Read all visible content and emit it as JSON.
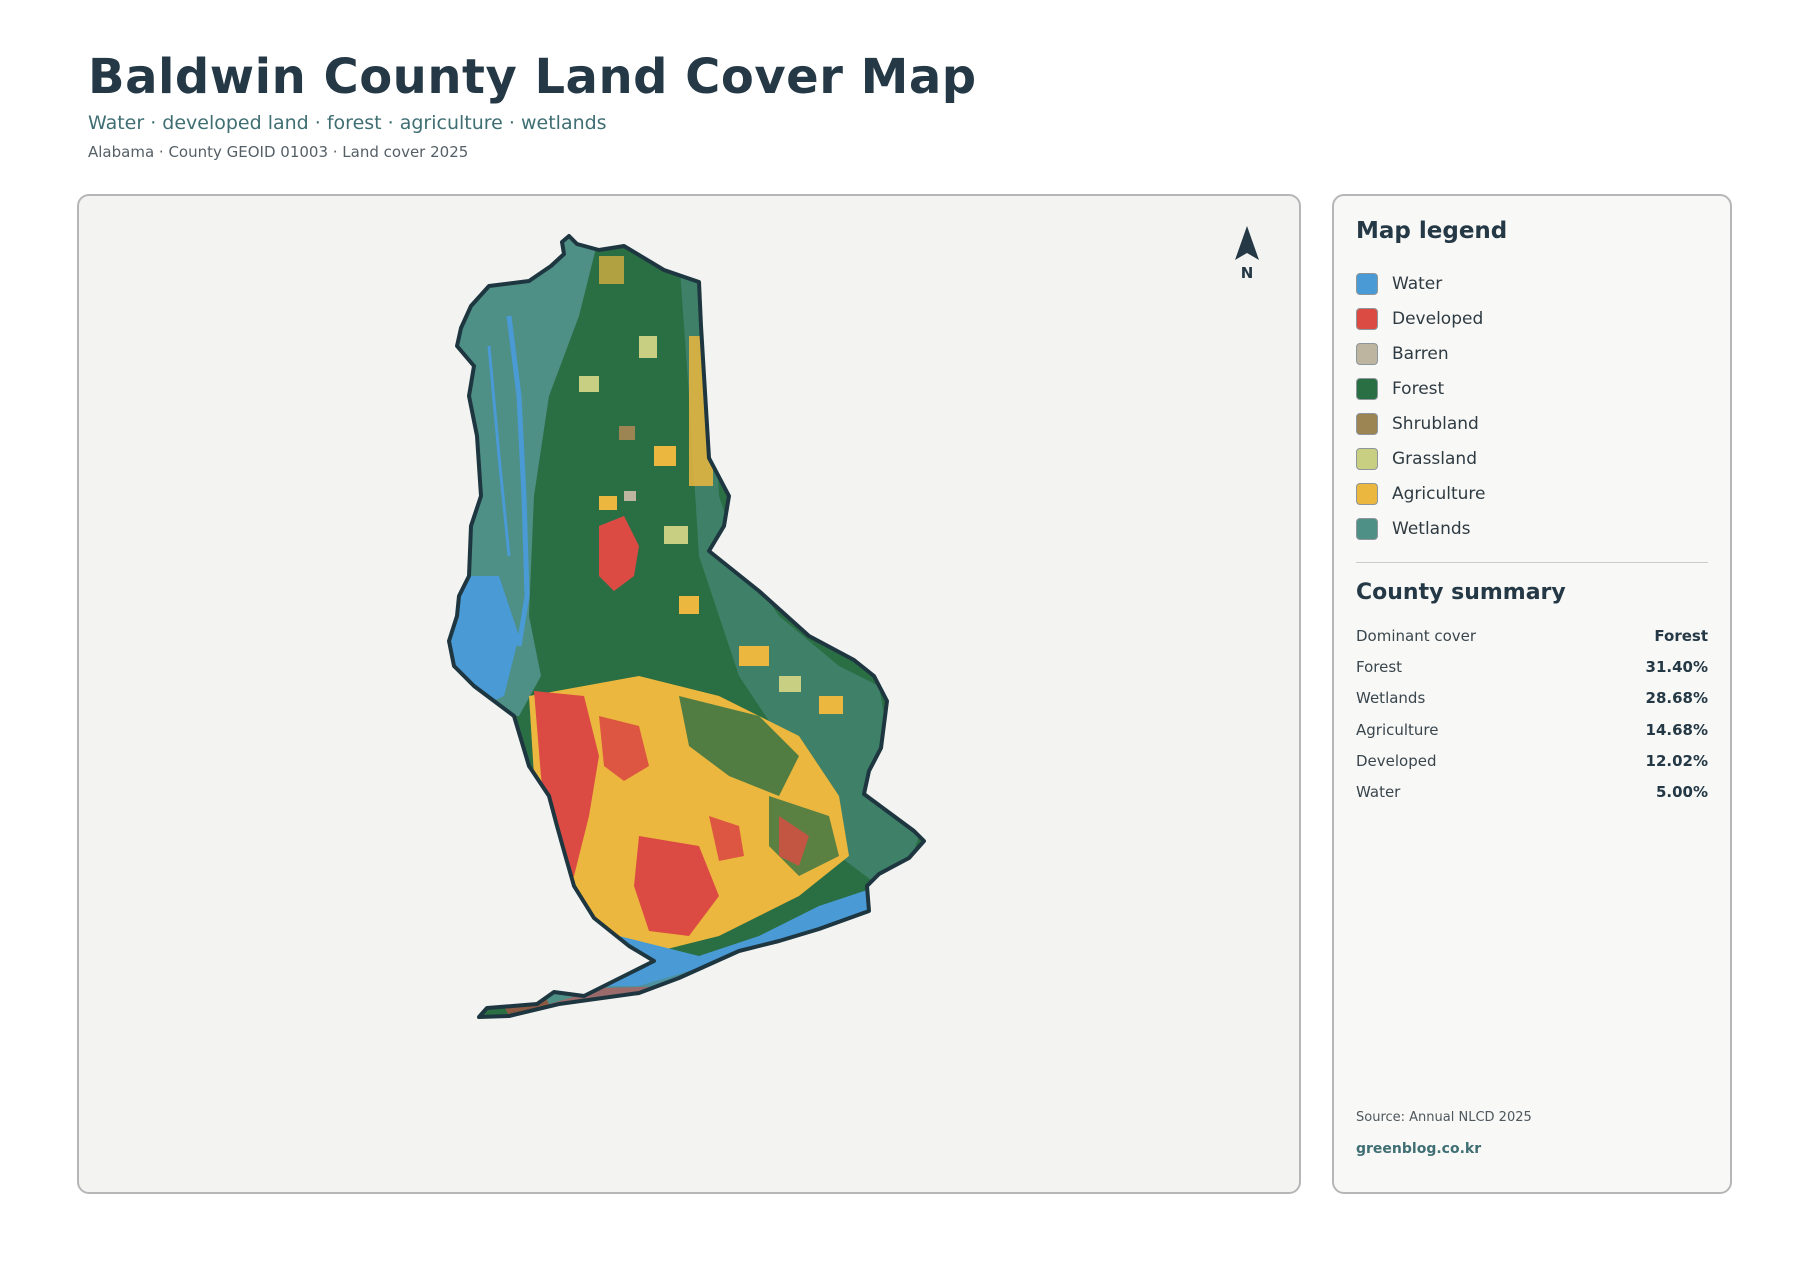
{
  "header": {
    "title": "Baldwin County Land Cover Map",
    "subtitle": "Water · developed land · forest · agriculture · wetlands",
    "meta": "Alabama · County GEOID 01003 · Land cover 2025"
  },
  "map": {
    "north_label": "N",
    "icons": [
      "north-arrow-icon"
    ]
  },
  "legend": {
    "title": "Map legend",
    "items": [
      {
        "label": "Water",
        "color": "#4a9ad6"
      },
      {
        "label": "Developed",
        "color": "#dc4b43"
      },
      {
        "label": "Barren",
        "color": "#bdb5a0"
      },
      {
        "label": "Forest",
        "color": "#2a6e44"
      },
      {
        "label": "Shrubland",
        "color": "#9c8552"
      },
      {
        "label": "Grassland",
        "color": "#c9cf82"
      },
      {
        "label": "Agriculture",
        "color": "#ecb73e"
      },
      {
        "label": "Wetlands",
        "color": "#4e8f86"
      }
    ]
  },
  "summary": {
    "title": "County summary",
    "rows": [
      {
        "label": "Dominant cover",
        "value": "Forest"
      },
      {
        "label": "Forest",
        "value": "31.40%"
      },
      {
        "label": "Wetlands",
        "value": "28.68%"
      },
      {
        "label": "Agriculture",
        "value": "14.68%"
      },
      {
        "label": "Developed",
        "value": "12.02%"
      },
      {
        "label": "Water",
        "value": "5.00%"
      }
    ]
  },
  "footer": {
    "source": "Source: Annual NLCD 2025",
    "credit": "greenblog.co.kr"
  }
}
